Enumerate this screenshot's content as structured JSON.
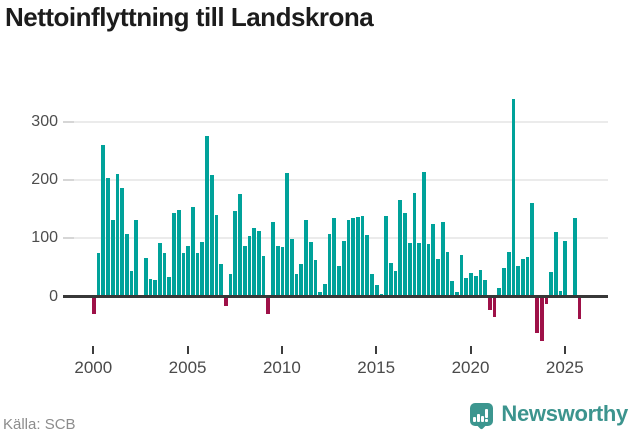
{
  "title": "Nettoinflyttning till Landskrona",
  "footer": {
    "source": "Källa: SCB",
    "brand": "Newsworthy"
  },
  "chart_data": {
    "type": "bar",
    "title": "Nettoinflyttning till Landskrona",
    "frequency": "quarterly",
    "start_period": "2000-Q1",
    "end_period": "2025-Q4",
    "xlabel": "",
    "ylabel": "",
    "ylim": [
      -90,
      370
    ],
    "y_ticks": [
      0,
      100,
      200,
      300
    ],
    "x_tick_labels": [
      "2000",
      "2005",
      "2010",
      "2015",
      "2020",
      "2025"
    ],
    "grid": "horizontal",
    "legend_position": "none",
    "colors": {
      "positive": "#00a29a",
      "negative": "#9e1148"
    },
    "series": [
      {
        "name": "Nettoinflyttning",
        "values": [
          -28,
          75,
          260,
          203,
          131,
          210,
          186,
          108,
          44,
          132,
          2,
          66,
          30,
          28,
          91,
          74,
          33,
          144,
          149,
          75,
          86,
          154,
          74,
          93,
          276,
          208,
          140,
          56,
          -13,
          39,
          147,
          175,
          87,
          103,
          117,
          112,
          69,
          -27,
          127,
          87,
          85,
          211,
          99,
          39,
          55,
          132,
          94,
          63,
          8,
          22,
          108,
          134,
          53,
          95,
          131,
          135,
          136,
          138,
          105,
          39,
          20,
          5,
          138,
          58,
          44,
          166,
          143,
          92,
          177,
          91,
          213,
          90,
          125,
          64,
          128,
          76,
          26,
          7,
          72,
          32,
          40,
          36,
          45,
          28,
          -20,
          -33,
          14,
          49,
          76,
          338,
          53,
          65,
          68,
          160,
          -60,
          -74,
          -10,
          42,
          110,
          10,
          95,
          0,
          134,
          -36
        ]
      }
    ]
  }
}
